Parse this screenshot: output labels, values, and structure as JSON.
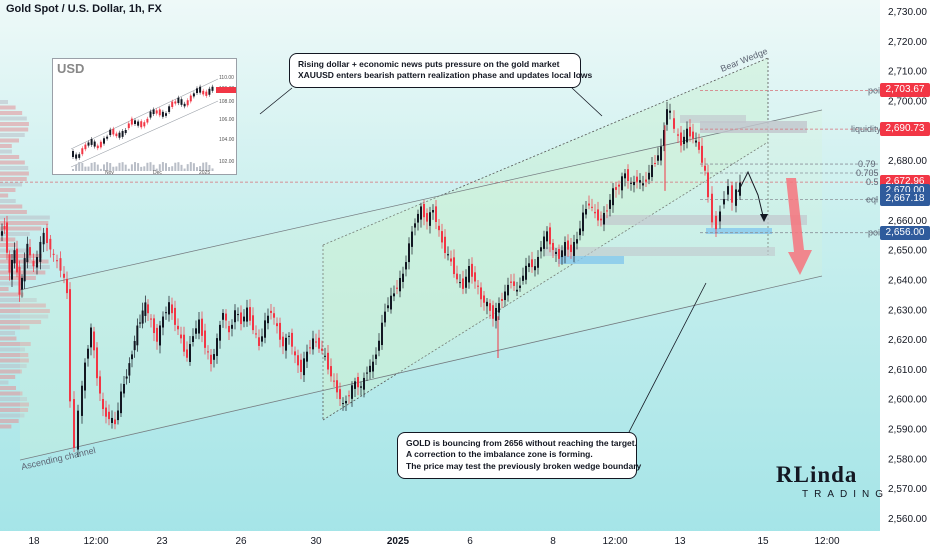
{
  "header": {
    "title": "Gold Spot / U.S. Dollar, 1h, FX"
  },
  "annotations": {
    "top_line1": "Rising dollar + economic news puts pressure on the gold market",
    "top_line2": "XAUUSD enters bearish pattern realization phase and updates local lows",
    "bottom_line1": "GOLD is bouncing from 2656 without reaching the target.",
    "bottom_line2": "A correction to the imbalance zone is forming.",
    "bottom_line3": "The price may test the previously broken wedge boundary"
  },
  "inset": {
    "title": "USD",
    "x_labels": [
      "Nov",
      "Dec",
      "2025"
    ],
    "y_labels": [
      "110.00",
      "109.33",
      "108.00",
      "106.00",
      "104.00",
      "102.00"
    ]
  },
  "logo": {
    "main": "RLinda",
    "sub": "TRADING"
  },
  "colors": {
    "up": "#089981",
    "down": "#f23645",
    "candle_up": "#131722",
    "tag_red": "#f23645",
    "tag_blue": "#2f5b9c",
    "arrow": "#f7737d"
  },
  "zones": {
    "bear_wedge": "Bear Wedge",
    "ascending_channel": "Ascending channel",
    "liquidity": "liquidity",
    "poi_top": "poi",
    "poi_bottom": "poi",
    "eql": "eql",
    "fib_079": "0.79",
    "fib_0705": "0.705",
    "fib_05": "0.5"
  },
  "chart_data": {
    "type": "candlestick",
    "title": "Gold Spot / U.S. Dollar, 1h, FX",
    "x_tick_labels": [
      "18",
      "12:00",
      "23",
      "26",
      "30",
      "2025",
      "6",
      "8",
      "12:00",
      "13",
      "15",
      "12:00"
    ],
    "y_tick_labels": [
      "2,560.00",
      "2,570.00",
      "2,580.00",
      "2,590.00",
      "2,600.00",
      "2,610.00",
      "2,620.00",
      "2,630.00",
      "2,640.00",
      "2,650.00",
      "2,660.00",
      "2,670.00",
      "2,680.00",
      "2,690.00",
      "2,700.00",
      "2,710.00",
      "2,720.00",
      "2,730.00"
    ],
    "ylim": [
      2556,
      2733
    ],
    "price_tags": [
      {
        "label": "2,703.67",
        "value": 2703.67,
        "color": "#f23645"
      },
      {
        "label": "2,690.73",
        "value": 2690.73,
        "color": "#f23645"
      },
      {
        "label": "2,672.96",
        "value": 2672.96,
        "color": "#f23645"
      },
      {
        "label": "2,670.00",
        "value": 2670.0,
        "color": "#2f5b9c"
      },
      {
        "label": "2,667.18",
        "value": 2667.18,
        "color": "#2f5b9c"
      },
      {
        "label": "2,656.00",
        "value": 2656.0,
        "color": "#2f5b9c"
      }
    ],
    "price_path": [
      [
        0,
        2655
      ],
      [
        5,
        2658
      ],
      [
        10,
        2642
      ],
      [
        15,
        2650
      ],
      [
        20,
        2636
      ],
      [
        28,
        2652
      ],
      [
        35,
        2644
      ],
      [
        45,
        2656
      ],
      [
        55,
        2648
      ],
      [
        62,
        2644
      ],
      [
        68,
        2636
      ],
      [
        72,
        2600
      ],
      [
        76,
        2584
      ],
      [
        80,
        2596
      ],
      [
        86,
        2612
      ],
      [
        92,
        2624
      ],
      [
        98,
        2608
      ],
      [
        104,
        2596
      ],
      [
        110,
        2594
      ],
      [
        116,
        2592
      ],
      [
        122,
        2602
      ],
      [
        130,
        2612
      ],
      [
        138,
        2624
      ],
      [
        146,
        2632
      ],
      [
        152,
        2626
      ],
      [
        158,
        2620
      ],
      [
        164,
        2628
      ],
      [
        170,
        2632
      ],
      [
        176,
        2626
      ],
      [
        182,
        2620
      ],
      [
        188,
        2614
      ],
      [
        194,
        2622
      ],
      [
        200,
        2626
      ],
      [
        206,
        2618
      ],
      [
        212,
        2612
      ],
      [
        218,
        2620
      ],
      [
        224,
        2630
      ],
      [
        230,
        2622
      ],
      [
        236,
        2630
      ],
      [
        242,
        2626
      ],
      [
        248,
        2630
      ],
      [
        254,
        2624
      ],
      [
        260,
        2618
      ],
      [
        266,
        2626
      ],
      [
        272,
        2630
      ],
      [
        278,
        2624
      ],
      [
        284,
        2618
      ],
      [
        290,
        2622
      ],
      [
        296,
        2614
      ],
      [
        302,
        2610
      ],
      [
        308,
        2616
      ],
      [
        314,
        2620
      ],
      [
        320,
        2618
      ],
      [
        326,
        2614
      ],
      [
        332,
        2608
      ],
      [
        338,
        2603
      ],
      [
        344,
        2598
      ],
      [
        350,
        2602
      ],
      [
        356,
        2606
      ],
      [
        362,
        2604
      ],
      [
        368,
        2610
      ],
      [
        374,
        2612
      ],
      [
        380,
        2620
      ],
      [
        386,
        2630
      ],
      [
        392,
        2634
      ],
      [
        398,
        2638
      ],
      [
        404,
        2642
      ],
      [
        410,
        2652
      ],
      [
        416,
        2660
      ],
      [
        422,
        2664
      ],
      [
        428,
        2660
      ],
      [
        434,
        2664
      ],
      [
        440,
        2656
      ],
      [
        446,
        2650
      ],
      [
        452,
        2646
      ],
      [
        458,
        2640
      ],
      [
        464,
        2638
      ],
      [
        470,
        2644
      ],
      [
        476,
        2640
      ],
      [
        482,
        2634
      ],
      [
        488,
        2632
      ],
      [
        494,
        2628
      ],
      [
        500,
        2632
      ],
      [
        506,
        2636
      ],
      [
        512,
        2640
      ],
      [
        518,
        2636
      ],
      [
        524,
        2642
      ],
      [
        530,
        2646
      ],
      [
        536,
        2644
      ],
      [
        542,
        2652
      ],
      [
        548,
        2656
      ],
      [
        554,
        2650
      ],
      [
        560,
        2648
      ],
      [
        566,
        2652
      ],
      [
        572,
        2650
      ],
      [
        578,
        2654
      ],
      [
        584,
        2662
      ],
      [
        590,
        2666
      ],
      [
        596,
        2662
      ],
      [
        602,
        2660
      ],
      [
        608,
        2664
      ],
      [
        614,
        2670
      ],
      [
        620,
        2672
      ],
      [
        626,
        2676
      ],
      [
        632,
        2672
      ],
      [
        638,
        2674
      ],
      [
        644,
        2672
      ],
      [
        650,
        2676
      ],
      [
        656,
        2680
      ],
      [
        662,
        2684
      ],
      [
        668,
        2698
      ],
      [
        672,
        2696
      ],
      [
        676,
        2690
      ],
      [
        682,
        2686
      ],
      [
        688,
        2690
      ],
      [
        694,
        2688
      ],
      [
        700,
        2684
      ],
      [
        706,
        2676
      ],
      [
        710,
        2668
      ],
      [
        714,
        2660
      ],
      [
        718,
        2658
      ],
      [
        722,
        2664
      ],
      [
        726,
        2668
      ],
      [
        730,
        2672
      ],
      [
        734,
        2666
      ],
      [
        738,
        2670
      ],
      [
        742,
        2672
      ]
    ]
  }
}
